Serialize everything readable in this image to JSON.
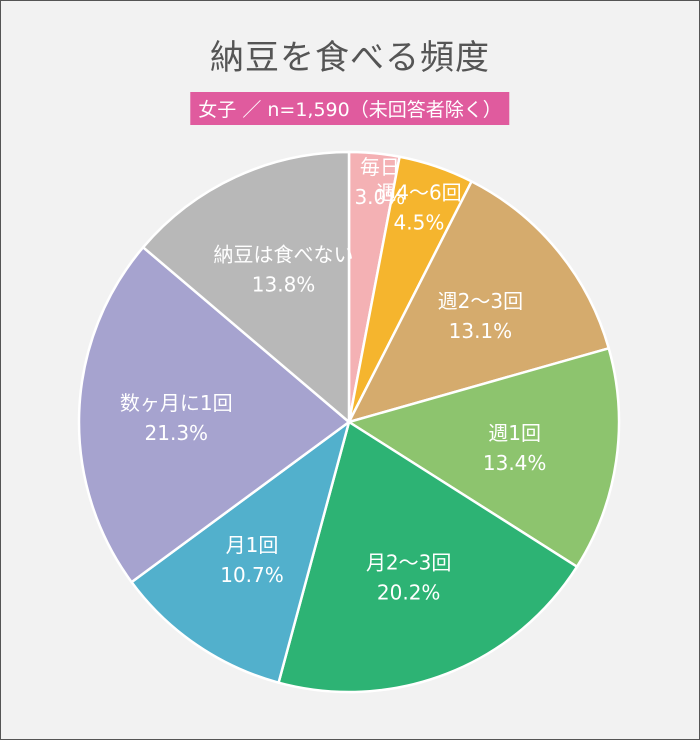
{
  "chart_data": {
    "type": "pie",
    "title": "納豆を食べる頻度",
    "subtitle": "女子 ／ n=1,590（未回答者除く）",
    "unit": "%",
    "slices": [
      {
        "label": "毎日",
        "value": 3.0,
        "value_label": "3.0%",
        "color": "#f4b1b4",
        "text_color": "#ffffff"
      },
      {
        "label": "週4〜6回",
        "value": 4.5,
        "value_label": "4.5%",
        "color": "#f5b52e",
        "text_color": "#ffffff"
      },
      {
        "label": "週2〜3回",
        "value": 13.1,
        "value_label": "13.1%",
        "color": "#d5ab6d",
        "text_color": "#ffffff"
      },
      {
        "label": "週1回",
        "value": 13.4,
        "value_label": "13.4%",
        "color": "#8dc46e",
        "text_color": "#ffffff"
      },
      {
        "label": "月2〜3回",
        "value": 20.2,
        "value_label": "20.2%",
        "color": "#2db374",
        "text_color": "#ffffff"
      },
      {
        "label": "月1回",
        "value": 10.7,
        "value_label": "10.7%",
        "color": "#52b0cc",
        "text_color": "#ffffff"
      },
      {
        "label": "数ヶ月に1回",
        "value": 21.3,
        "value_label": "21.3%",
        "color": "#a6a3cf",
        "text_color": "#ffffff"
      },
      {
        "label": "納豆は食べない",
        "value": 13.8,
        "value_label": "13.8%",
        "color": "#b8b8b8",
        "text_color": "#ffffff"
      }
    ]
  }
}
